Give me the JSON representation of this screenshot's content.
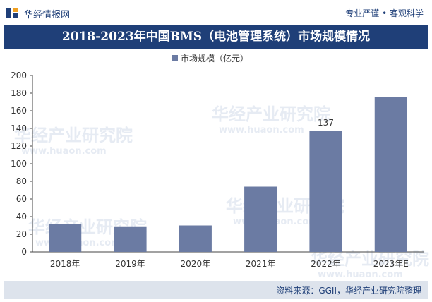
{
  "header": {
    "brand": "华经情报网",
    "slogan": "专业严谨 • 客观科学"
  },
  "watermark": {
    "name": "华经产业研究院",
    "url": "www.huaon.com"
  },
  "footer": {
    "source": "资料来源：GGII，华经产业研究院整理"
  },
  "colors": {
    "bar": "#6b7ba3",
    "header": "#1f3f78",
    "footer": "#dde3ec"
  },
  "chart_data": {
    "type": "bar",
    "title": "2018-2023年中国BMS（电池管理系统）市场规模情况",
    "categories": [
      "2018年",
      "2019年",
      "2020年",
      "2021年",
      "2022年",
      "2023年E"
    ],
    "series": [
      {
        "name": "市场规模（亿元）",
        "values": [
          32,
          29,
          30,
          74,
          137,
          176
        ]
      }
    ],
    "labels": [
      "",
      "",
      "",
      "",
      "137",
      ""
    ],
    "ylim": [
      0,
      200
    ],
    "yticks": [
      0,
      20,
      40,
      60,
      80,
      100,
      120,
      140,
      160,
      180,
      200
    ],
    "legend": "top-center",
    "grid": false
  }
}
